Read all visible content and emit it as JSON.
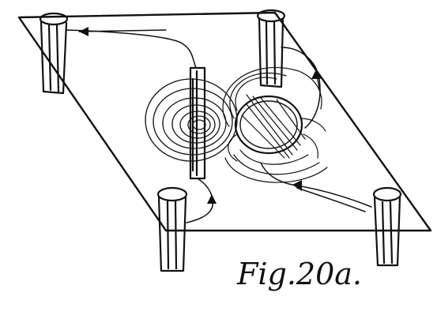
{
  "figure": {
    "caption": "Fig.20a."
  },
  "colors": {
    "ink": "#111111",
    "paper": "#ffffff"
  }
}
